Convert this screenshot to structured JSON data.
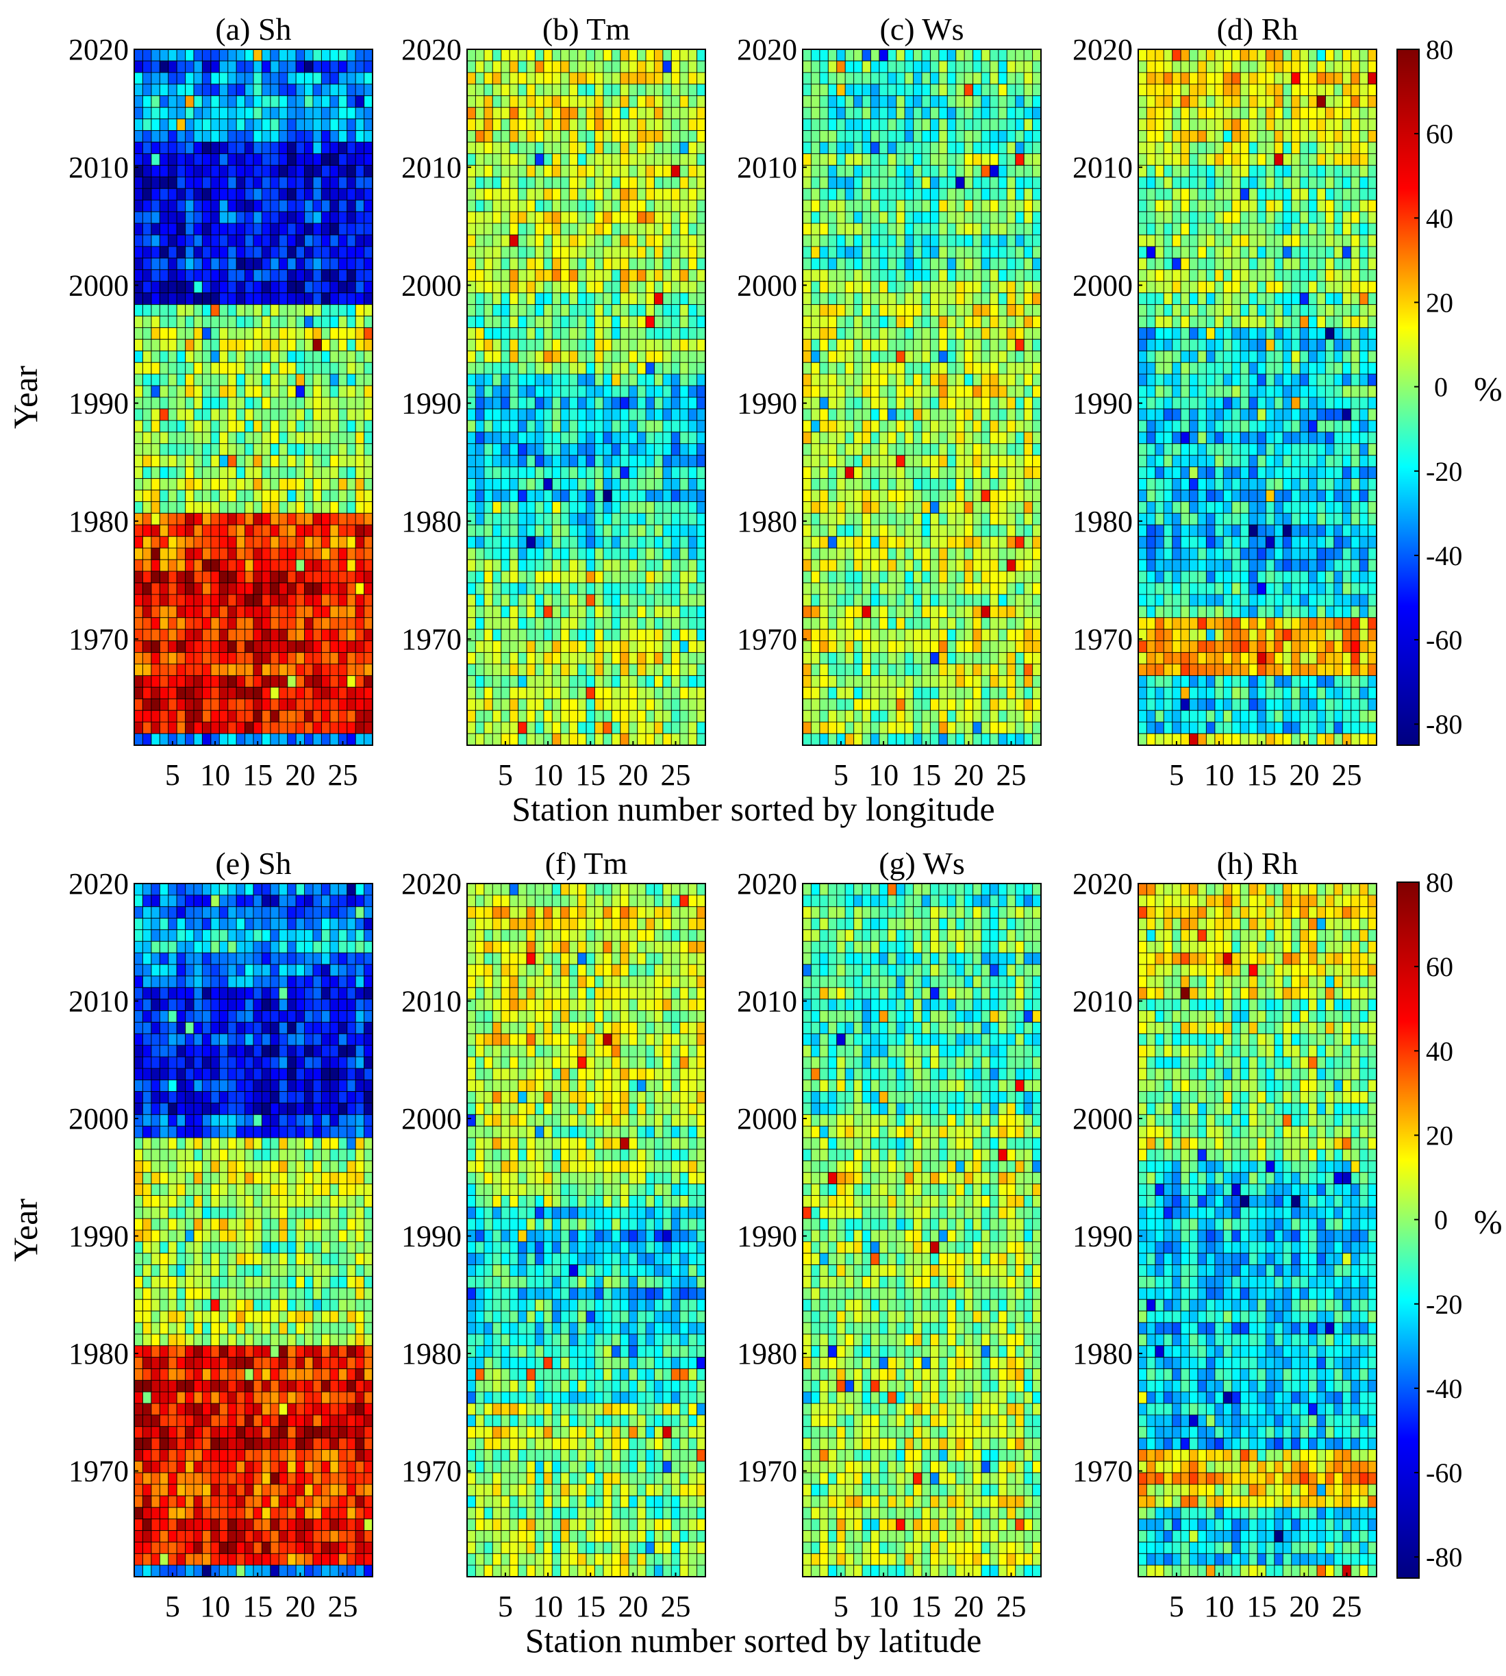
{
  "chart_data": [
    {
      "type": "heatmap",
      "id": "a",
      "title": "(a) Sh",
      "variable": "Sh",
      "row": "top",
      "xlabel": "Station number sorted by longitude",
      "ylabel": "Year",
      "xticks": [
        5,
        10,
        15,
        20,
        25
      ],
      "yticks": [
        2020,
        2010,
        2000,
        1990,
        1980,
        1970
      ],
      "xlim": [
        1,
        28
      ],
      "ylim": [
        1961,
        2020
      ],
      "clim": [
        -85,
        80
      ],
      "pattern": [
        {
          "from": 1961,
          "to": 1980,
          "mean": 55
        },
        {
          "from": 1980,
          "to": 1983,
          "mean": 10
        },
        {
          "from": 1983,
          "to": 1998,
          "mean": 0
        },
        {
          "from": 1998,
          "to": 2012,
          "mean": -60
        },
        {
          "from": 2012,
          "to": 2016,
          "mean": -35
        },
        {
          "from": 2016,
          "to": 2020,
          "mean": -45
        }
      ]
    },
    {
      "type": "heatmap",
      "id": "b",
      "title": "(b) Tm",
      "variable": "Tm",
      "row": "top",
      "xlabel": "Station number sorted by longitude",
      "ylabel": "Year",
      "xticks": [
        5,
        10,
        15,
        20,
        25
      ],
      "yticks": [
        2020,
        2010,
        2000,
        1990,
        1980,
        1970
      ],
      "xlim": [
        1,
        28
      ],
      "ylim": [
        1961,
        2020
      ],
      "clim": [
        -85,
        80
      ],
      "pattern": [
        {
          "from": 1961,
          "to": 1965,
          "mean": 10
        },
        {
          "from": 1965,
          "to": 1975,
          "mean": 0
        },
        {
          "from": 1975,
          "to": 1980,
          "mean": -15
        },
        {
          "from": 1980,
          "to": 1992,
          "mean": -25
        },
        {
          "from": 1992,
          "to": 2000,
          "mean": 0
        },
        {
          "from": 2000,
          "to": 2020,
          "mean": 10
        }
      ]
    },
    {
      "type": "heatmap",
      "id": "c",
      "title": "(c) Ws",
      "variable": "Ws",
      "row": "top",
      "xlabel": "Station number sorted by longitude",
      "ylabel": "Year",
      "xticks": [
        5,
        10,
        15,
        20,
        25
      ],
      "yticks": [
        2020,
        2010,
        2000,
        1990,
        1980,
        1970
      ],
      "xlim": [
        1,
        28
      ],
      "ylim": [
        1961,
        2020
      ],
      "clim": [
        -85,
        80
      ],
      "pattern": [
        {
          "from": 1961,
          "to": 1980,
          "mean": 5
        },
        {
          "from": 1980,
          "to": 2000,
          "mean": 5
        },
        {
          "from": 2000,
          "to": 2020,
          "mean": -10
        }
      ]
    },
    {
      "type": "heatmap",
      "id": "d",
      "title": "(d) Rh",
      "variable": "Rh",
      "row": "top",
      "xlabel": "Station number sorted by longitude",
      "ylabel": "Year",
      "xticks": [
        5,
        10,
        15,
        20,
        25
      ],
      "yticks": [
        2020,
        2010,
        2000,
        1990,
        1980,
        1970
      ],
      "xlim": [
        1,
        28
      ],
      "ylim": [
        1961,
        2020
      ],
      "clim": [
        -85,
        80
      ],
      "pattern": [
        {
          "from": 1961,
          "to": 1966,
          "mean": -25
        },
        {
          "from": 1966,
          "to": 1971,
          "mean": 25
        },
        {
          "from": 1971,
          "to": 1996,
          "mean": -25
        },
        {
          "from": 1996,
          "to": 2010,
          "mean": 0
        },
        {
          "from": 2010,
          "to": 2020,
          "mean": 15
        }
      ]
    },
    {
      "type": "heatmap",
      "id": "e",
      "title": "(e) Sh",
      "variable": "Sh",
      "row": "bottom",
      "xlabel": "Station number sorted by latitude",
      "ylabel": "Year",
      "xticks": [
        5,
        10,
        15,
        20,
        25
      ],
      "yticks": [
        2020,
        2010,
        2000,
        1990,
        1980,
        1970
      ],
      "xlim": [
        1,
        28
      ],
      "ylim": [
        1961,
        2020
      ],
      "clim": [
        -85,
        80
      ],
      "pattern": [
        {
          "from": 1961,
          "to": 1980,
          "mean": 55
        },
        {
          "from": 1980,
          "to": 1983,
          "mean": 10
        },
        {
          "from": 1983,
          "to": 1998,
          "mean": 0
        },
        {
          "from": 1998,
          "to": 2012,
          "mean": -60
        },
        {
          "from": 2012,
          "to": 2016,
          "mean": -35
        },
        {
          "from": 2016,
          "to": 2020,
          "mean": -45
        }
      ]
    },
    {
      "type": "heatmap",
      "id": "f",
      "title": "(f) Tm",
      "variable": "Tm",
      "row": "bottom",
      "xlabel": "Station number sorted by latitude",
      "ylabel": "Year",
      "xticks": [
        5,
        10,
        15,
        20,
        25
      ],
      "yticks": [
        2020,
        2010,
        2000,
        1990,
        1980,
        1970
      ],
      "xlim": [
        1,
        28
      ],
      "ylim": [
        1961,
        2020
      ],
      "clim": [
        -85,
        80
      ],
      "pattern": [
        {
          "from": 1961,
          "to": 1965,
          "mean": 10
        },
        {
          "from": 1965,
          "to": 1975,
          "mean": 0
        },
        {
          "from": 1975,
          "to": 1980,
          "mean": -15
        },
        {
          "from": 1980,
          "to": 1992,
          "mean": -25
        },
        {
          "from": 1992,
          "to": 2000,
          "mean": 0
        },
        {
          "from": 2000,
          "to": 2020,
          "mean": 10
        }
      ]
    },
    {
      "type": "heatmap",
      "id": "g",
      "title": "(g) Ws",
      "variable": "Ws",
      "row": "bottom",
      "xlabel": "Station number sorted by latitude",
      "ylabel": "Year",
      "xticks": [
        5,
        10,
        15,
        20,
        25
      ],
      "yticks": [
        2020,
        2010,
        2000,
        1990,
        1980,
        1970
      ],
      "xlim": [
        1,
        28
      ],
      "ylim": [
        1961,
        2020
      ],
      "clim": [
        -85,
        80
      ],
      "pattern": [
        {
          "from": 1961,
          "to": 1980,
          "mean": 5
        },
        {
          "from": 1980,
          "to": 2000,
          "mean": 5
        },
        {
          "from": 2000,
          "to": 2020,
          "mean": -10
        }
      ]
    },
    {
      "type": "heatmap",
      "id": "h",
      "title": "(h) Rh",
      "variable": "Rh",
      "row": "bottom",
      "xlabel": "Station number sorted by latitude",
      "ylabel": "Year",
      "xticks": [
        5,
        10,
        15,
        20,
        25
      ],
      "yticks": [
        2020,
        2010,
        2000,
        1990,
        1980,
        1970
      ],
      "xlim": [
        1,
        28
      ],
      "ylim": [
        1961,
        2020
      ],
      "clim": [
        -85,
        80
      ],
      "pattern": [
        {
          "from": 1961,
          "to": 1966,
          "mean": -25
        },
        {
          "from": 1966,
          "to": 1971,
          "mean": 25
        },
        {
          "from": 1971,
          "to": 1996,
          "mean": -25
        },
        {
          "from": 1996,
          "to": 2010,
          "mean": 0
        },
        {
          "from": 2010,
          "to": 2020,
          "mean": 15
        }
      ]
    }
  ],
  "figure": {
    "rows": [
      {
        "xlabel": "Station number sorted by longitude",
        "ylabel": "Year"
      },
      {
        "xlabel": "Station number sorted by latitude",
        "ylabel": "Year"
      }
    ],
    "colorbar": {
      "ticks": [
        80,
        60,
        40,
        20,
        0,
        -20,
        -40,
        -60,
        -80
      ],
      "zero_label": "0",
      "unit": "%",
      "range": [
        -85,
        80
      ],
      "colormap": "jet",
      "colormap_stops": [
        "#00007f",
        "#0000ff",
        "#00ffff",
        "#ffff00",
        "#ff0000",
        "#7f0000"
      ]
    }
  }
}
